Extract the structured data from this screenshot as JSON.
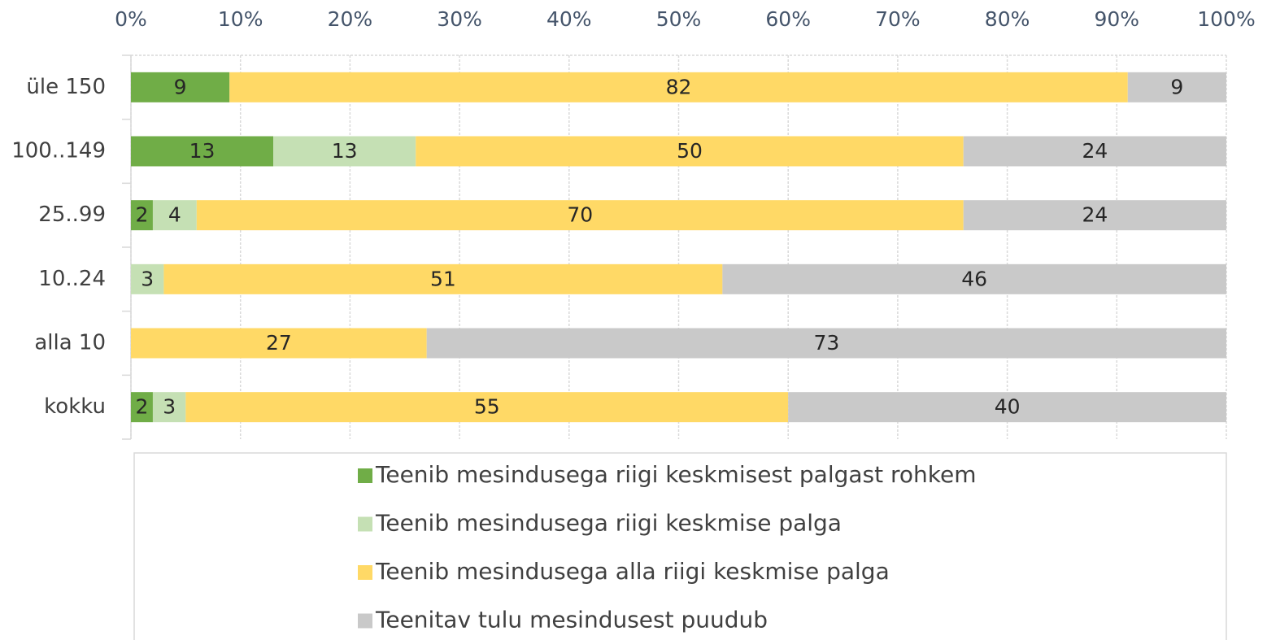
{
  "chart_data": {
    "type": "stacked-bar-horizontal",
    "categories": [
      "üle 150",
      "100..149",
      "25..99",
      "10..24",
      "alla 10",
      "kokku"
    ],
    "series": [
      {
        "name": "Teenib mesindusega riigi keskmisest palgast rohkem",
        "color": "#70ad47",
        "values": [
          9,
          13,
          2,
          null,
          null,
          2
        ]
      },
      {
        "name": "Teenib mesindusega riigi keskmise palga",
        "color": "#c5e0b4",
        "values": [
          null,
          13,
          4,
          3,
          null,
          3
        ]
      },
      {
        "name": "Teenib mesindusega alla riigi keskmise palga",
        "color": "#ffd966",
        "values": [
          82,
          50,
          70,
          51,
          27,
          55
        ]
      },
      {
        "name": "Teenitav tulu mesindusest puudub",
        "color": "#c9c9c9",
        "values": [
          9,
          24,
          24,
          46,
          73,
          40
        ]
      }
    ],
    "xlim": [
      0,
      100
    ],
    "xticks": [
      {
        "value": 0,
        "label": "0%"
      },
      {
        "value": 10,
        "label": "10%"
      },
      {
        "value": 20,
        "label": "20%"
      },
      {
        "value": 30,
        "label": "30%"
      },
      {
        "value": 40,
        "label": "40%"
      },
      {
        "value": 50,
        "label": "50%"
      },
      {
        "value": 60,
        "label": "60%"
      },
      {
        "value": 70,
        "label": "70%"
      },
      {
        "value": 80,
        "label": "80%"
      },
      {
        "value": 90,
        "label": "90%"
      },
      {
        "value": 100,
        "label": "100%"
      }
    ],
    "grid": true,
    "legend": "bottom"
  }
}
